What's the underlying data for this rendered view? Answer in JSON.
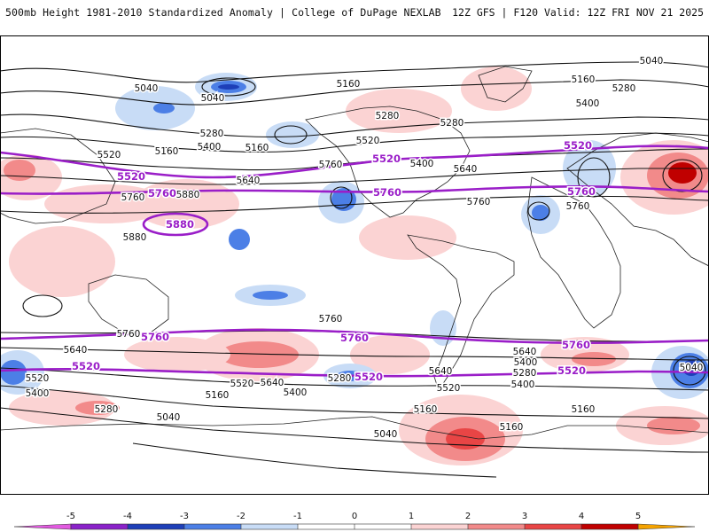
{
  "header": {
    "title": "500mb Height 1981-2010 Standardized Anomaly | College of DuPage NEXLAB",
    "run": "12Z GFS | F120 Valid: 12Z FRI NOV 21 2025"
  },
  "colors": {
    "neg5": "#e25ae0",
    "neg4": "#8a22c9",
    "neg3": "#1e3fb8",
    "neg2": "#4c7fe6",
    "neg1": "#c8dcf6",
    "zero": "#ffffff",
    "pos1": "#fbd3d3",
    "pos2": "#f28a8a",
    "pos3": "#e84545",
    "pos4": "#c00000",
    "pos5": "#f5a300",
    "highlight_contour": "#9a1ec8"
  },
  "map": {
    "contour_labels": [
      "5040",
      "5040",
      "5040",
      "5160",
      "5160",
      "5160",
      "5160",
      "5040",
      "5280",
      "5280",
      "5280",
      "5280",
      "5400",
      "5400",
      "5400",
      "5520",
      "5520",
      "5640",
      "5640",
      "5760",
      "5760",
      "5880",
      "5880",
      "5760",
      "5760",
      "5760",
      "5760",
      "5640",
      "5640",
      "5640",
      "5520",
      "5520",
      "5400",
      "5400",
      "5400",
      "5280",
      "5280",
      "5280",
      "5160",
      "5160",
      "5160",
      "5040",
      "5040",
      "5160",
      "5520",
      "5640",
      "5400"
    ],
    "highlight_labels": [
      "5520",
      "5520",
      "5520",
      "5760",
      "5760",
      "5760",
      "5880",
      "5760",
      "5760",
      "5760",
      "5520",
      "5520",
      "5520"
    ]
  },
  "colorbar": {
    "ticks": [
      "-5",
      "-4",
      "-3",
      "-2",
      "-1",
      "0",
      "1",
      "2",
      "3",
      "4",
      "5"
    ]
  }
}
